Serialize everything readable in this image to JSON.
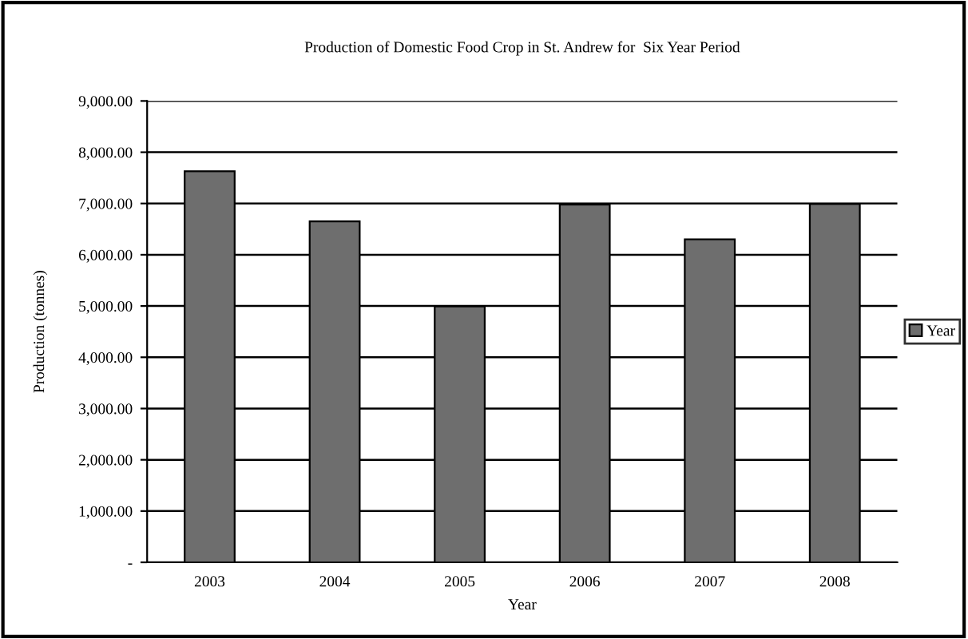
{
  "chart_data": {
    "type": "bar",
    "title": "Production of Domestic Food Crop in St. Andrew for  Six Year Period",
    "xlabel": "Year",
    "ylabel": "Production (tonnes)",
    "categories": [
      "2003",
      "2004",
      "2005",
      "2006",
      "2007",
      "2008"
    ],
    "series": [
      {
        "name": "Year",
        "color": "#6e6e6e",
        "values": [
          7630,
          6650,
          4990,
          6980,
          6300,
          6990
        ]
      }
    ],
    "ylim": [
      0,
      9000
    ],
    "yticks": [
      {
        "value": 0,
        "label": "-"
      },
      {
        "value": 1000,
        "label": "1,000.00"
      },
      {
        "value": 2000,
        "label": "2,000.00"
      },
      {
        "value": 3000,
        "label": "3,000.00"
      },
      {
        "value": 4000,
        "label": "4,000.00"
      },
      {
        "value": 5000,
        "label": "5,000.00"
      },
      {
        "value": 6000,
        "label": "6,000.00"
      },
      {
        "value": 7000,
        "label": "7,000.00"
      },
      {
        "value": 8000,
        "label": "8,000.00"
      },
      {
        "value": 9000,
        "label": "9,000.00"
      }
    ],
    "grid": "y",
    "legend": "right"
  }
}
